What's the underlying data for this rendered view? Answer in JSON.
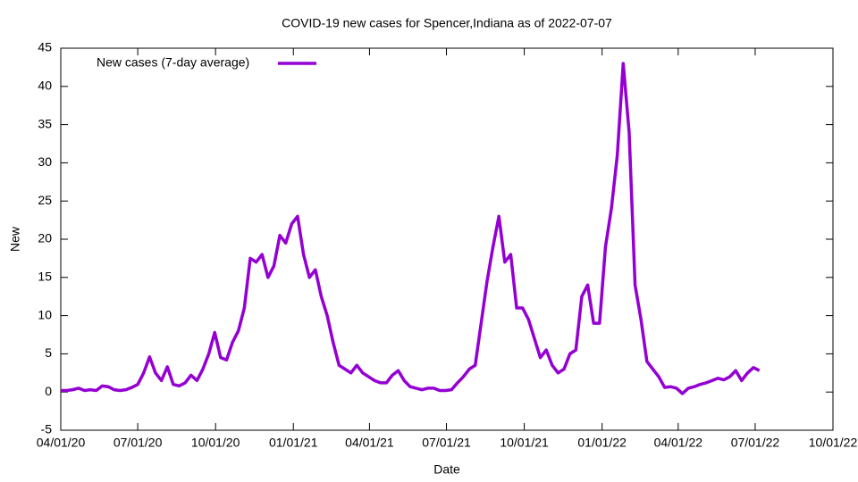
{
  "chart_data": {
    "type": "line",
    "title": "COVID-19 new cases for Spencer,Indiana as of 2022-07-07",
    "x_label": "Date",
    "y_label": "New",
    "x": [
      "2020-04-01",
      "2020-04-08",
      "2020-04-15",
      "2020-04-22",
      "2020-04-29",
      "2020-05-06",
      "2020-05-13",
      "2020-05-20",
      "2020-05-27",
      "2020-06-03",
      "2020-06-10",
      "2020-06-17",
      "2020-06-24",
      "2020-07-01",
      "2020-07-08",
      "2020-07-15",
      "2020-07-22",
      "2020-07-29",
      "2020-08-05",
      "2020-08-12",
      "2020-08-19",
      "2020-08-26",
      "2020-09-02",
      "2020-09-09",
      "2020-09-16",
      "2020-09-23",
      "2020-09-30",
      "2020-10-07",
      "2020-10-14",
      "2020-10-21",
      "2020-10-28",
      "2020-11-04",
      "2020-11-11",
      "2020-11-18",
      "2020-11-25",
      "2020-12-02",
      "2020-12-09",
      "2020-12-16",
      "2020-12-23",
      "2020-12-30",
      "2021-01-06",
      "2021-01-13",
      "2021-01-20",
      "2021-01-27",
      "2021-02-03",
      "2021-02-10",
      "2021-02-17",
      "2021-02-24",
      "2021-03-03",
      "2021-03-10",
      "2021-03-17",
      "2021-03-24",
      "2021-03-31",
      "2021-04-07",
      "2021-04-14",
      "2021-04-21",
      "2021-04-28",
      "2021-05-05",
      "2021-05-12",
      "2021-05-19",
      "2021-05-26",
      "2021-06-02",
      "2021-06-09",
      "2021-06-16",
      "2021-06-23",
      "2021-06-30",
      "2021-07-07",
      "2021-07-14",
      "2021-07-21",
      "2021-07-28",
      "2021-08-04",
      "2021-08-11",
      "2021-08-18",
      "2021-08-25",
      "2021-09-01",
      "2021-09-08",
      "2021-09-15",
      "2021-09-22",
      "2021-09-29",
      "2021-10-06",
      "2021-10-13",
      "2021-10-20",
      "2021-10-27",
      "2021-11-03",
      "2021-11-10",
      "2021-11-17",
      "2021-11-24",
      "2021-12-01",
      "2021-12-08",
      "2021-12-15",
      "2021-12-22",
      "2021-12-29",
      "2022-01-05",
      "2022-01-12",
      "2022-01-19",
      "2022-01-26",
      "2022-02-02",
      "2022-02-09",
      "2022-02-16",
      "2022-02-23",
      "2022-03-02",
      "2022-03-09",
      "2022-03-16",
      "2022-03-23",
      "2022-03-30",
      "2022-04-06",
      "2022-04-13",
      "2022-04-20",
      "2022-04-27",
      "2022-05-04",
      "2022-05-11",
      "2022-05-18",
      "2022-05-25",
      "2022-06-01",
      "2022-06-08",
      "2022-06-15",
      "2022-06-22",
      "2022-06-29",
      "2022-07-06"
    ],
    "series": [
      {
        "name": "New cases (7-day average)",
        "color": "#9400d3",
        "values": [
          0.2,
          0.2,
          0.3,
          0.5,
          0.2,
          0.3,
          0.2,
          0.8,
          0.7,
          0.3,
          0.2,
          0.3,
          0.6,
          1,
          2.5,
          4.6,
          2.5,
          1.5,
          3.3,
          1,
          0.8,
          1.2,
          2.2,
          1.5,
          3,
          5,
          7.8,
          4.5,
          4.2,
          6.5,
          8,
          11,
          17.5,
          17,
          18,
          15,
          16.5,
          20.5,
          19.5,
          22,
          23,
          18,
          15,
          16,
          12.5,
          10,
          6.5,
          3.5,
          3,
          2.5,
          3.5,
          2.5,
          2,
          1.5,
          1.2,
          1.2,
          2.2,
          2.8,
          1.5,
          0.7,
          0.5,
          0.3,
          0.5,
          0.5,
          0.2,
          0.2,
          0.3,
          1.2,
          2,
          3,
          3.5,
          9,
          14.5,
          19,
          23,
          17,
          18,
          11,
          11,
          9.5,
          7,
          4.5,
          5.5,
          3.5,
          2.5,
          3,
          5,
          5.5,
          12.5,
          14,
          9,
          9,
          19,
          24,
          31,
          43,
          34,
          14,
          9.5,
          4,
          3,
          2,
          0.6,
          0.7,
          0.5,
          -0.2,
          0.5,
          0.7,
          1,
          1.2,
          1.5,
          1.8,
          1.6,
          2,
          2.8,
          1.5,
          2.5,
          3.2,
          2.8
        ]
      }
    ],
    "xlim": [
      "2020-04-01",
      "2022-10-01"
    ],
    "xticks": [
      {
        "value": "2020-04-01",
        "label": "04/01/20"
      },
      {
        "value": "2020-07-01",
        "label": "07/01/20"
      },
      {
        "value": "2020-10-01",
        "label": "10/01/20"
      },
      {
        "value": "2021-01-01",
        "label": "01/01/21"
      },
      {
        "value": "2021-04-01",
        "label": "04/01/21"
      },
      {
        "value": "2021-07-01",
        "label": "07/01/21"
      },
      {
        "value": "2021-10-01",
        "label": "10/01/21"
      },
      {
        "value": "2022-01-01",
        "label": "01/01/22"
      },
      {
        "value": "2022-04-01",
        "label": "04/01/22"
      },
      {
        "value": "2022-07-01",
        "label": "07/01/22"
      },
      {
        "value": "2022-10-01",
        "label": "10/01/22"
      }
    ],
    "ylim": [
      -5,
      45
    ],
    "yticks": [
      -5,
      0,
      5,
      10,
      15,
      20,
      25,
      30,
      35,
      40,
      45
    ],
    "grid": false,
    "legend": "top-left"
  }
}
